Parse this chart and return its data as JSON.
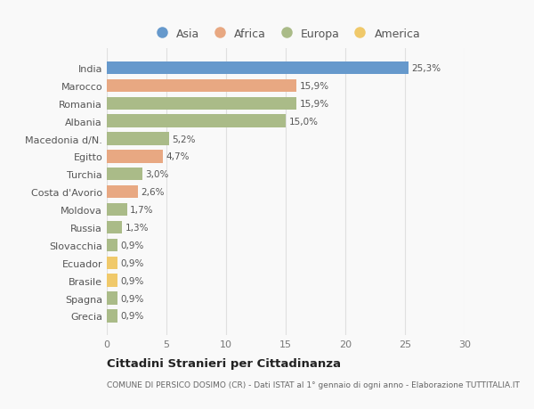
{
  "countries": [
    "India",
    "Marocco",
    "Romania",
    "Albania",
    "Macedonia d/N.",
    "Egitto",
    "Turchia",
    "Costa d'Avorio",
    "Moldova",
    "Russia",
    "Slovacchia",
    "Ecuador",
    "Brasile",
    "Spagna",
    "Grecia"
  ],
  "values": [
    25.3,
    15.9,
    15.9,
    15.0,
    5.2,
    4.7,
    3.0,
    2.6,
    1.7,
    1.3,
    0.9,
    0.9,
    0.9,
    0.9,
    0.9
  ],
  "labels": [
    "25,3%",
    "15,9%",
    "15,9%",
    "15,0%",
    "5,2%",
    "4,7%",
    "3,0%",
    "2,6%",
    "1,7%",
    "1,3%",
    "0,9%",
    "0,9%",
    "0,9%",
    "0,9%",
    "0,9%"
  ],
  "continents": [
    "Asia",
    "Africa",
    "Europa",
    "Europa",
    "Europa",
    "Africa",
    "Europa",
    "Africa",
    "Europa",
    "Europa",
    "Europa",
    "America",
    "America",
    "Europa",
    "Europa"
  ],
  "colors": {
    "Asia": "#6699CC",
    "Africa": "#E8A882",
    "Europa": "#AABB88",
    "America": "#F0C96A"
  },
  "legend_order": [
    "Asia",
    "Africa",
    "Europa",
    "America"
  ],
  "title": "Cittadini Stranieri per Cittadinanza",
  "subtitle": "COMUNE DI PERSICO DOSIMO (CR) - Dati ISTAT al 1° gennaio di ogni anno - Elaborazione TUTTITALIA.IT",
  "xlim": [
    0,
    30
  ],
  "xticks": [
    0,
    5,
    10,
    15,
    20,
    25,
    30
  ],
  "background_color": "#f9f9f9",
  "grid_color": "#e0e0e0"
}
